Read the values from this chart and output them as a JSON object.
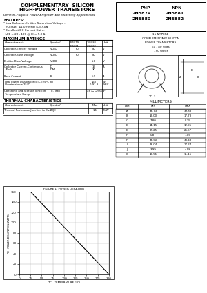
{
  "title_line1": "COMPLEMENTARY  SILICON",
  "title_line2": "HIGH-POWER TRANSISTORS",
  "subtitle": "General-Purpose Power Amplifier and Switching Applications",
  "features_title": "FEATURES:",
  "feat1": "* Low Collector-Emitter Saturation Voltage -",
  "feat2": "  VCE(sat) ≤1.0V(Max) IC=7.0A",
  "feat3": "* Excellent DC Current Gain -",
  "feat4": "  hFE = 20 - 100 @ IC = 5.0 A",
  "pnp_label": "PNP",
  "npn_label": "NPN",
  "pnp1": "2N5879",
  "pnp2": "2N5880",
  "npn1": "2N5881",
  "npn2": "2N5882",
  "box2_lines": [
    "15 AMPERE",
    "COMPLEMENTARY SILICON",
    "POWER TRANSISTORS",
    "60 - 80 Volts",
    "150 Watts"
  ],
  "to3_label": "TO-3",
  "max_ratings_title": "MAXIMUM RATINGS",
  "col_headers": [
    "Characteristic",
    "Symbol",
    "2N5879\n2N5881",
    "2N5880\n2N5882",
    "Unit"
  ],
  "thermal_title": "THERMAL CHARACTERISTICS",
  "thermal_char": "Thermal Resistance Junction to Case",
  "thermal_sym": "Rtheta-JC",
  "thermal_max": "1.1",
  "thermal_unit": "°C/W",
  "graph_title": "FIGURE 1. POWER DERATING",
  "graph_xlabel": "TC - TEMPERATURE (°C)",
  "graph_ylabel": "PD - POWER DISSIPATION(WATTS)",
  "dim_table_title": "MILLIMETERS",
  "dim_headers": [
    "DIM",
    "MIN",
    "MAX"
  ],
  "dim_rows": [
    [
      "A",
      "38.73",
      "39.88"
    ],
    [
      "B",
      "16.00",
      "17.73"
    ],
    [
      "C",
      "7.80",
      "8.25"
    ],
    [
      "D",
      "11.15",
      "12.95"
    ],
    [
      "E",
      "25.25",
      "26.67"
    ],
    [
      "F",
      "0.87",
      "1.05"
    ],
    [
      "H",
      "38.50",
      "38.43"
    ],
    [
      "I",
      "18.04",
      "17.27"
    ],
    [
      "J",
      "3.99",
      "4.08"
    ],
    [
      "K",
      "10.51",
      "11.15"
    ]
  ],
  "bg_color": "#ffffff"
}
